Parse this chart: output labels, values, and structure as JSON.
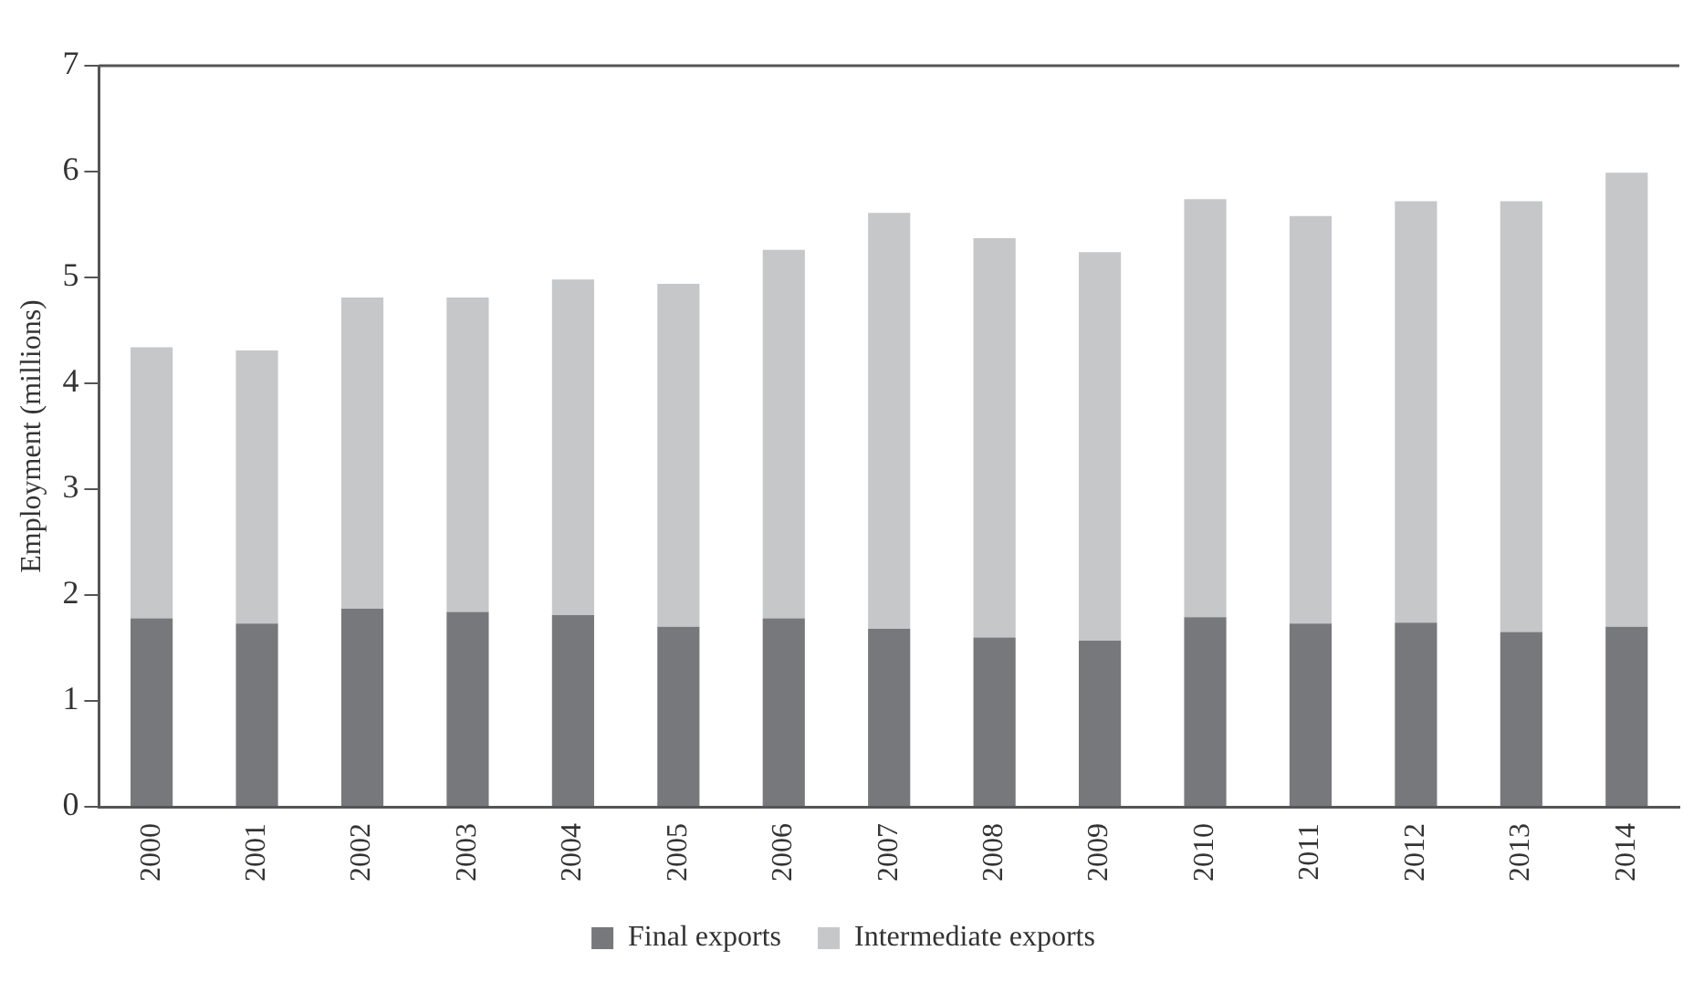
{
  "chart_data": {
    "type": "bar",
    "stacked": true,
    "ylabel": "Employment (millions)",
    "categories": [
      "2000",
      "2001",
      "2002",
      "2003",
      "2004",
      "2005",
      "2006",
      "2007",
      "2008",
      "2009",
      "2010",
      "2011",
      "2012",
      "2013",
      "2014"
    ],
    "series": [
      {
        "name": "Final exports",
        "color": "#77787c",
        "values": [
          1.78,
          1.73,
          1.87,
          1.84,
          1.81,
          1.7,
          1.78,
          1.68,
          1.6,
          1.57,
          1.79,
          1.73,
          1.74,
          1.65,
          1.7
        ]
      },
      {
        "name": "Intermediate exports",
        "color": "#c6c7c9",
        "values": [
          2.56,
          2.58,
          2.94,
          2.97,
          3.17,
          3.24,
          3.48,
          3.93,
          3.77,
          3.67,
          3.95,
          3.85,
          3.98,
          4.07,
          4.29
        ]
      }
    ],
    "ylim": [
      0,
      7
    ],
    "yticks": [
      0,
      1,
      2,
      3,
      4,
      5,
      6,
      7
    ],
    "grid": false,
    "legend": "bottom"
  }
}
